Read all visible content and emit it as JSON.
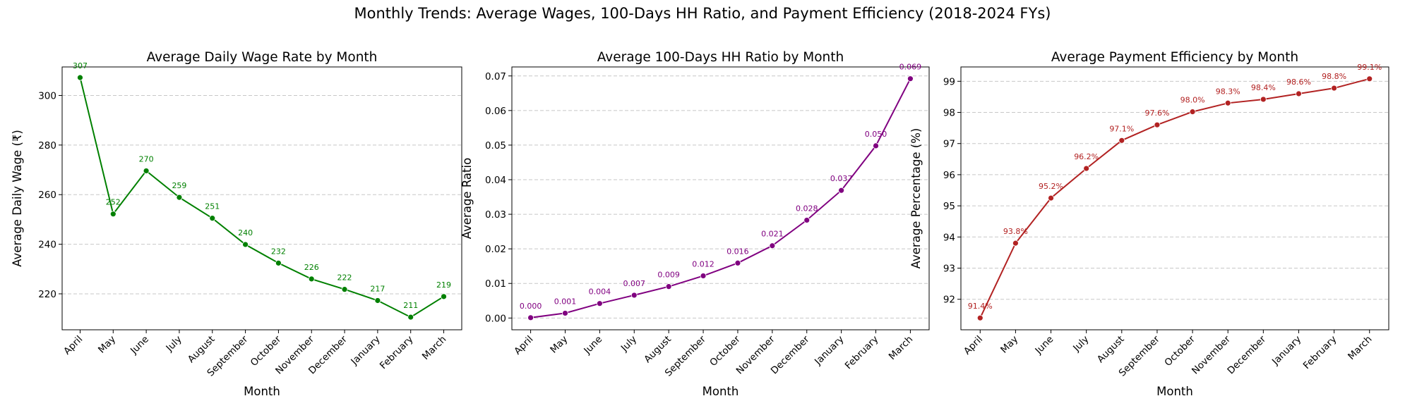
{
  "figure": {
    "suptitle": "Monthly Trends: Average Wages, 100-Days HH Ratio, and Payment Efficiency (2018-2024 FYs)"
  },
  "chart_data": [
    {
      "type": "line",
      "title": "Average Daily Wage Rate by Month",
      "xlabel": "Month",
      "ylabel": "Average Daily Wage (₹)",
      "categories": [
        "April",
        "May",
        "June",
        "July",
        "August",
        "September",
        "October",
        "November",
        "December",
        "January",
        "February",
        "March"
      ],
      "values": [
        307.2,
        252.2,
        269.6,
        258.9,
        250.5,
        239.9,
        232.4,
        226.0,
        221.8,
        217.3,
        210.6,
        218.9
      ],
      "point_labels": [
        "307",
        "252",
        "270",
        "259",
        "251",
        "240",
        "232",
        "226",
        "222",
        "217",
        "211",
        "219"
      ],
      "ylim": [
        205.5,
        311.5
      ],
      "yticks": [
        220,
        240,
        260,
        280,
        300
      ],
      "ytick_labels": [
        "220",
        "240",
        "260",
        "280",
        "300"
      ],
      "color": "#008000",
      "grid": "y-dashed"
    },
    {
      "type": "line",
      "title": "Average 100-Days HH Ratio by Month",
      "xlabel": "Month",
      "ylabel": "Average Ratio",
      "categories": [
        "April",
        "May",
        "June",
        "July",
        "August",
        "September",
        "October",
        "November",
        "December",
        "January",
        "February",
        "March"
      ],
      "values": [
        0.0001,
        0.0014,
        0.0042,
        0.0066,
        0.0091,
        0.0122,
        0.0159,
        0.0209,
        0.0283,
        0.0369,
        0.0498,
        0.0692
      ],
      "point_labels": [
        "0.000",
        "0.001",
        "0.004",
        "0.007",
        "0.009",
        "0.012",
        "0.016",
        "0.021",
        "0.028",
        "0.037",
        "0.050",
        "0.069"
      ],
      "ylim": [
        -0.0034,
        0.0726
      ],
      "yticks": [
        0.0,
        0.01,
        0.02,
        0.03,
        0.04,
        0.05,
        0.06,
        0.07
      ],
      "ytick_labels": [
        "0.00",
        "0.01",
        "0.02",
        "0.03",
        "0.04",
        "0.05",
        "0.06",
        "0.07"
      ],
      "color": "#800080",
      "grid": "y-dashed"
    },
    {
      "type": "line",
      "title": "Average Payment Efficiency by Month",
      "xlabel": "Month",
      "ylabel": "Average Percentage (%)",
      "categories": [
        "April",
        "May",
        "June",
        "July",
        "August",
        "September",
        "October",
        "November",
        "December",
        "January",
        "February",
        "March"
      ],
      "values": [
        91.4,
        93.8,
        95.25,
        96.2,
        97.1,
        97.6,
        98.02,
        98.3,
        98.42,
        98.6,
        98.78,
        99.08
      ],
      "point_labels": [
        "91.4%",
        "93.8%",
        "95.2%",
        "96.2%",
        "97.1%",
        "97.6%",
        "98.0%",
        "98.3%",
        "98.4%",
        "98.6%",
        "98.8%",
        "99.1%"
      ],
      "ylim": [
        91.02,
        99.46
      ],
      "yticks": [
        92,
        93,
        94,
        95,
        96,
        97,
        98,
        99
      ],
      "ytick_labels": [
        "92",
        "93",
        "94",
        "95",
        "96",
        "97",
        "98",
        "99"
      ],
      "color": "#b22222",
      "grid": "y-dashed"
    }
  ]
}
